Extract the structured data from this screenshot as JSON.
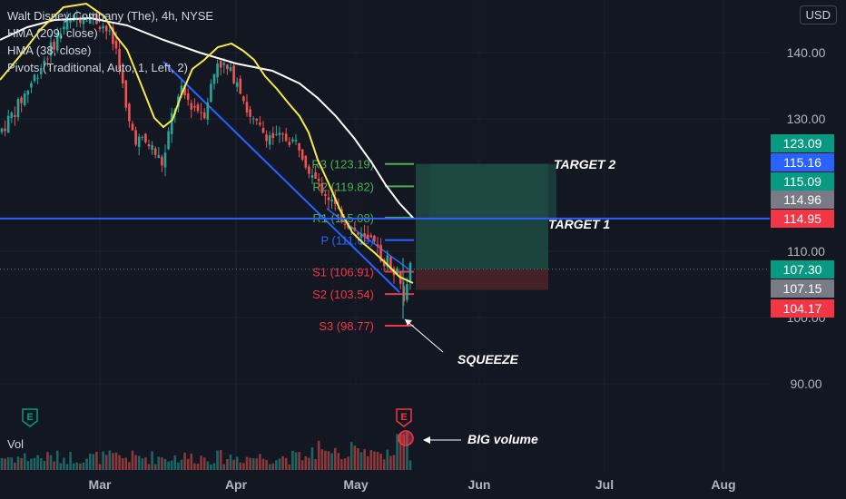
{
  "legend": {
    "title": "Walt Disney Company (The), 4h, NYSE",
    "ind1": "HMA (209, close)",
    "ind2": "HMA (38, close)",
    "ind3": "Pivots (Traditional, Auto, 1, Left, 2)"
  },
  "currency": "USD",
  "volume_label": "Vol",
  "colors": {
    "background": "#131722",
    "up": "#26a69a",
    "down": "#ef5350",
    "hma_fast": "#f5e94b",
    "hma_slow": "#ffffff",
    "trendline": "#2962ff",
    "target_zone": "#1e4a43",
    "stop_zone": "#4a2228",
    "pivot_green": "#4caf50",
    "pivot_blue": "#2962ff",
    "pivot_red": "#f23645"
  },
  "chart_data": {
    "type": "candlestick",
    "x_labels": [
      "Mar",
      "Apr",
      "May",
      "Jun",
      "Jul",
      "Aug"
    ],
    "y_ticks": [
      "140.00",
      "130.00",
      "110.00",
      "100.00",
      "90.00"
    ],
    "y_tick_values": [
      140,
      130,
      110,
      100,
      90
    ],
    "ylim": [
      84.6,
      147.3
    ],
    "price_tags": [
      {
        "text": "123.09",
        "value": 123.09,
        "color": "#089981"
      },
      {
        "text": "115.16",
        "value": 115.16,
        "color": "#2962ff"
      },
      {
        "text": "115.09",
        "value": 115.09,
        "color": "#089981"
      },
      {
        "text": "114.96",
        "value": 114.96,
        "color": "#787b86"
      },
      {
        "text": "114.95",
        "value": 114.95,
        "color": "#f23645"
      },
      {
        "text": "107.30",
        "value": 107.3,
        "color": "#089981"
      },
      {
        "text": "107.15",
        "value": 107.15,
        "color": "#787b86"
      },
      {
        "text": "104.17",
        "value": 104.17,
        "color": "#f23645"
      }
    ],
    "pivots": [
      {
        "label": "R3 (123.19)",
        "value": 123.19,
        "color": "#4caf50"
      },
      {
        "label": "R2 (119.82)",
        "value": 119.82,
        "color": "#4caf50"
      },
      {
        "label": "R1 (115.08)",
        "value": 115.08,
        "color": "#4caf50"
      },
      {
        "label": "P (111.69)",
        "value": 111.69,
        "color": "#2962ff"
      },
      {
        "label": "S1 (106.91)",
        "value": 106.91,
        "color": "#f23645"
      },
      {
        "label": "S2 (103.54)",
        "value": 103.54,
        "color": "#f23645"
      },
      {
        "label": "S3 (98.77)",
        "value": 98.77,
        "color": "#f23645"
      }
    ],
    "horizontal_line": 114.95,
    "last_price": 107.3,
    "target_zone": [
      107.3,
      123.2
    ],
    "stop_zone": [
      104.17,
      107.3
    ],
    "annotations": {
      "target2": "TARGET 2",
      "target1": "TARGET 1",
      "squeeze": "SQUEEZE",
      "big_volume": "BIG volume"
    },
    "earnings_marker": "E"
  }
}
